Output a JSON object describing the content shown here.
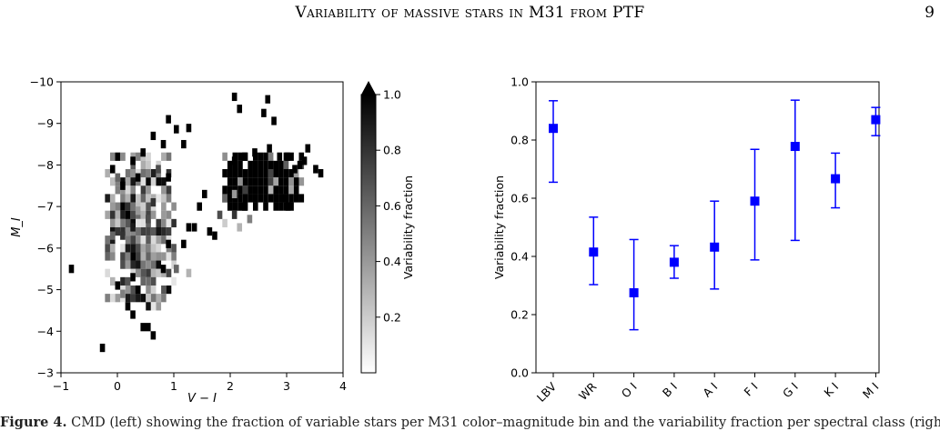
{
  "header": {
    "title": "Variability of massive stars in M31 from PTF",
    "page_number": "9"
  },
  "caption": {
    "label": "Figure 4.",
    "text": "CMD (left) showing the fraction of variable stars per M31 color–magnitude bin and the variability fraction per spectral class (right) for massive stars"
  },
  "chart_data": [
    {
      "type": "heatmap",
      "title": "",
      "xlabel": "V − I",
      "ylabel": "M_I",
      "xlim": [
        -1,
        4
      ],
      "ylim": [
        -3,
        -10
      ],
      "y_inverted": true,
      "x_ticks": [
        "−1",
        "0",
        "1",
        "2",
        "3",
        "4"
      ],
      "y_ticks": [
        "−3",
        "−4",
        "−5",
        "−6",
        "−7",
        "−8",
        "−9",
        "−10"
      ],
      "colorbar": {
        "label": "Variability fraction",
        "range": [
          0,
          1.0
        ],
        "ticks": [
          "0.2",
          "0.4",
          "0.6",
          "0.8",
          "1.0"
        ],
        "extend": "max",
        "colormap": "gray_r"
      },
      "cells": [
        [
          2.03,
          -9.64,
          1.0
        ],
        [
          2.62,
          -9.58,
          1.0
        ],
        [
          2.12,
          -9.35,
          1.0
        ],
        [
          2.55,
          -9.25,
          1.0
        ],
        [
          2.73,
          -9.06,
          1.0
        ],
        [
          0.86,
          -9.1,
          1.0
        ],
        [
          1.0,
          -8.86,
          1.0
        ],
        [
          1.22,
          -8.89,
          1.0
        ],
        [
          0.59,
          -8.7,
          1.0
        ],
        [
          0.77,
          -8.5,
          1.0
        ],
        [
          1.13,
          -8.5,
          1.0
        ],
        [
          3.33,
          -8.4,
          1.0
        ],
        [
          2.97,
          -8.2,
          1.0
        ],
        [
          3.27,
          -8.1,
          1.0
        ],
        [
          3.47,
          -7.9,
          1.0
        ],
        [
          3.56,
          -7.8,
          1.0
        ],
        [
          -0.04,
          -8.2,
          1.0
        ],
        [
          0.23,
          -8.1,
          1.0
        ],
        [
          0.41,
          -8.3,
          1.0
        ],
        [
          -0.13,
          -7.9,
          1.0
        ],
        [
          -0.04,
          -7.7,
          0.6
        ],
        [
          0.05,
          -7.5,
          1.0
        ],
        [
          0.32,
          -7.7,
          1.0
        ],
        [
          0.5,
          -7.8,
          0.5
        ],
        [
          0.68,
          -7.9,
          0.7
        ],
        [
          0.86,
          -7.7,
          1.0
        ],
        [
          1.5,
          -7.3,
          1.0
        ],
        [
          1.41,
          -7.0,
          1.0
        ],
        [
          1.22,
          -6.5,
          1.0
        ],
        [
          1.32,
          -6.5,
          1.0
        ],
        [
          1.59,
          -6.4,
          1.0
        ],
        [
          1.68,
          -6.3,
          1.0
        ],
        [
          1.13,
          -6.1,
          1.0
        ],
        [
          0.86,
          -6.1,
          1.0
        ],
        [
          0.5,
          -6.0,
          0.5
        ],
        [
          0.32,
          -6.0,
          0.7
        ],
        [
          0.14,
          -6.0,
          0.9
        ],
        [
          0.77,
          -5.5,
          1.0
        ],
        [
          1.0,
          -5.5,
          0.6
        ],
        [
          1.22,
          -5.4,
          0.3
        ],
        [
          0.41,
          -5.2,
          0.6
        ],
        [
          0.23,
          -5.3,
          1.0
        ],
        [
          0.32,
          -5.0,
          1.0
        ],
        [
          -0.04,
          -5.1,
          1.0
        ],
        [
          0.05,
          -4.9,
          0.5
        ],
        [
          0.14,
          -4.6,
          1.0
        ],
        [
          0.23,
          -4.4,
          1.0
        ],
        [
          0.41,
          -4.1,
          1.0
        ],
        [
          0.5,
          -4.1,
          1.0
        ],
        [
          0.59,
          -3.9,
          1.0
        ],
        [
          -0.31,
          -3.6,
          1.0
        ],
        [
          -0.86,
          -5.5,
          1.0
        ],
        [
          -0.13,
          -6.3,
          0.6
        ],
        [
          0.05,
          -6.3,
          0.8
        ],
        [
          0.23,
          -6.5,
          0.9
        ],
        [
          0.14,
          -6.8,
          1.0
        ],
        [
          0.32,
          -6.9,
          0.4
        ],
        [
          0.5,
          -6.7,
          0.7
        ],
        [
          0.59,
          -7.1,
          0.8
        ],
        [
          1.95,
          -7.6,
          1.0
        ],
        [
          2.03,
          -7.3,
          0.4
        ],
        [
          1.86,
          -7.2,
          0.6
        ],
        [
          1.77,
          -6.8,
          0.7
        ],
        [
          1.86,
          -6.6,
          0.2
        ],
        [
          2.03,
          -6.8,
          0.8
        ],
        [
          2.21,
          -7.0,
          1.0
        ],
        [
          2.3,
          -6.7,
          0.5
        ],
        [
          2.12,
          -6.5,
          0.3
        ],
        [
          2.03,
          -8.1,
          1.0
        ],
        [
          2.21,
          -8.2,
          1.0
        ],
        [
          2.39,
          -8.3,
          1.0
        ],
        [
          2.65,
          -8.4,
          1.0
        ],
        [
          2.83,
          -8.2,
          1.0
        ],
        [
          3.1,
          -7.9,
          1.0
        ],
        [
          3.19,
          -8.0,
          1.0
        ],
        [
          2.9,
          -7.2,
          1.0
        ],
        [
          2.98,
          -7.0,
          1.0
        ]
      ],
      "cluster_blue": {
        "x_range": [
          -0.22,
          0.97
        ],
        "y_range": [
          -8.2,
          -4.4
        ]
      },
      "cluster_red": {
        "x_range": [
          1.86,
          3.24
        ],
        "y_range": [
          -8.2,
          -6.9
        ]
      }
    },
    {
      "type": "scatter",
      "title": "",
      "xlabel": "",
      "ylabel": "Variability fraction",
      "ylim": [
        0.0,
        1.0
      ],
      "y_ticks": [
        "0.0",
        "0.2",
        "0.4",
        "0.6",
        "0.8",
        "1.0"
      ],
      "categories": [
        "LBV",
        "WR",
        "O I",
        "B I",
        "A I",
        "F I",
        "G I",
        "K I",
        "M I"
      ],
      "values": [
        0.84,
        0.415,
        0.275,
        0.38,
        0.432,
        0.59,
        0.778,
        0.667,
        0.87
      ],
      "err_low": [
        0.655,
        0.303,
        0.148,
        0.325,
        0.288,
        0.388,
        0.455,
        0.567,
        0.815
      ],
      "err_high": [
        0.935,
        0.535,
        0.458,
        0.437,
        0.59,
        0.768,
        0.937,
        0.755,
        0.912
      ],
      "marker_color": "#0000ff"
    }
  ]
}
